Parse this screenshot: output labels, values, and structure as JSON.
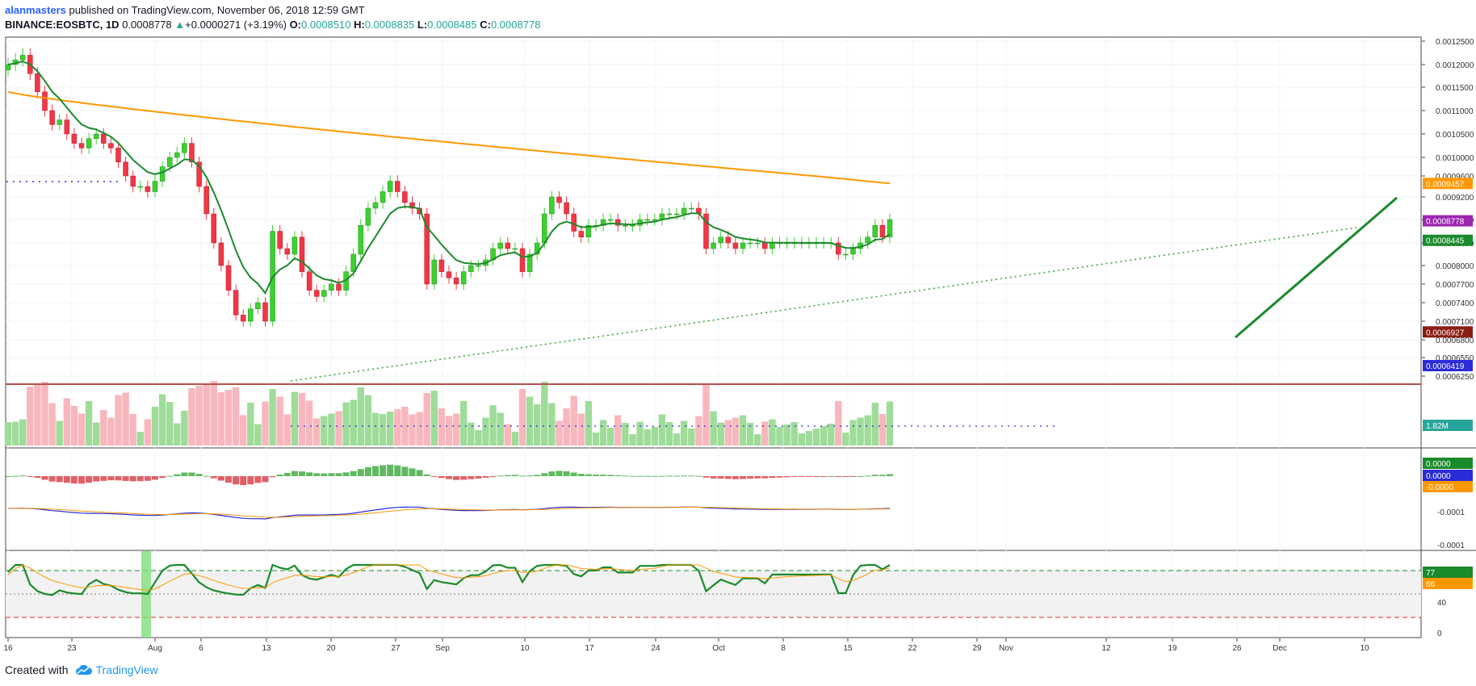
{
  "header": {
    "author": "alanmasters",
    "published_text": " published on TradingView.com, November 06, 2018 12:59 GMT",
    "symbol": "BINANCE:EOSBTC, 1D",
    "last": "0.0008778",
    "change_arrow": "▲",
    "change": "+0.0000271 (+3.19%)",
    "o_label": "O:",
    "o": "0.0008510",
    "h_label": "H:",
    "h": "0.0008835",
    "l_label": "L:",
    "l": "0.0008485",
    "c_label": "C:",
    "c": "0.0008778"
  },
  "footer": {
    "created_with": "Created with",
    "brand": "TradingView"
  },
  "colors": {
    "up": "#26a69a",
    "candle_up": "#3bd12e",
    "candle_down": "#f23645",
    "ema": "#1b8a2b",
    "ma200": "#ff9800",
    "support": "#b5524a",
    "vol_up": "#9fdc9a",
    "vol_down": "#f7b7bd",
    "macd_line": "#2b2bd9",
    "signal": "#ff9800"
  },
  "chart_data": [
    {
      "type": "candlestick",
      "symbol": "BINANCE:EOSBTC",
      "interval": "1D",
      "x_ticks": [
        "16",
        "23",
        "Aug",
        "6",
        "13",
        "20",
        "27",
        "Sep",
        "10",
        "17",
        "24",
        "Oct",
        "8",
        "15",
        "22",
        "29",
        "Nov",
        "12",
        "19",
        "26",
        "Dec",
        "10"
      ],
      "y_ticks": [
        "0.0012500",
        "0.0012000",
        "0.0011500",
        "0.0011000",
        "0.0010500",
        "0.0010000",
        "0.0009600",
        "0.0009200",
        "0.0008800",
        "0.0008400",
        "0.0008000",
        "0.0007700",
        "0.0007400",
        "0.0007100",
        "0.0006800",
        "0.0006550",
        "0.0006250"
      ],
      "close": [
        0.0012,
        0.00121,
        0.00122,
        0.00118,
        0.00114,
        0.0011,
        0.00107,
        0.00108,
        0.00105,
        0.00103,
        0.00102,
        0.00104,
        0.00105,
        0.00103,
        0.00102,
        0.00099,
        0.00096,
        0.00094,
        0.00094,
        0.00093,
        0.00095,
        0.00098,
        0.001,
        0.00101,
        0.00103,
        0.00099,
        0.00094,
        0.00089,
        0.00084,
        0.0008,
        0.00076,
        0.00072,
        0.00071,
        0.00073,
        0.00074,
        0.00071,
        0.00086,
        0.00083,
        0.00082,
        0.00085,
        0.00079,
        0.00076,
        0.00075,
        0.00076,
        0.00077,
        0.00076,
        0.00079,
        0.00082,
        0.00087,
        0.0009,
        0.00091,
        0.00093,
        0.00095,
        0.00093,
        0.00091,
        0.0009,
        0.00089,
        0.00077,
        0.00081,
        0.00079,
        0.00078,
        0.00077,
        0.00079,
        0.0008,
        0.0008,
        0.00081,
        0.00083,
        0.00084,
        0.00083,
        0.00083,
        0.00079,
        0.00082,
        0.00084,
        0.00089,
        0.00092,
        0.00091,
        0.00089,
        0.00086,
        0.00085,
        0.00087,
        0.00087,
        0.00088,
        0.00088,
        0.00087,
        0.00087,
        0.00087,
        0.00088,
        0.00088,
        0.00088,
        0.00089,
        0.00089,
        0.00089,
        0.0009,
        0.0009,
        0.00089,
        0.00083,
        0.00084,
        0.00085,
        0.00084,
        0.00083,
        0.00084,
        0.00084,
        0.00084,
        0.00083,
        0.00084,
        0.00084,
        0.00084,
        0.00084,
        0.00084,
        0.00084,
        0.00084,
        0.00084,
        0.00084,
        0.00082,
        0.00082,
        0.00083,
        0.00084,
        0.00085,
        0.00087,
        0.00085,
        0.00088
      ],
      "ema_last": 0.0008445,
      "ma200_last": 0.0009457,
      "price_labels": [
        {
          "value": 0.0009457,
          "text": "0.0009457",
          "color": "#ff9800"
        },
        {
          "value": 0.0008778,
          "text": "0.0008778",
          "color": "#9c27b0"
        },
        {
          "value": 0.0008445,
          "text": "0.0008445",
          "color": "#1b8a2b"
        },
        {
          "value": 0.0006927,
          "text": "0.0006927",
          "color": "#8b1c12"
        },
        {
          "value": 0.0006419,
          "text": "0.0006419",
          "color": "#2b2bd9"
        }
      ],
      "volume_label": "1.82M",
      "volume_label_color": "#26a69a"
    },
    {
      "type": "bar",
      "name": "",
      "y_ticks": [
        "-0.0001",
        "-0.0001"
      ],
      "labels": [
        {
          "text": "0.0000",
          "color": "#1b8a2b"
        },
        {
          "text": "0.0000",
          "color": "#2b2bd9"
        },
        {
          "text": "-0.0000",
          "color": "#ff9800"
        }
      ]
    },
    {
      "type": "line",
      "name": "",
      "y_ticks": [
        "40",
        "0"
      ],
      "upper": 70,
      "lower": 30,
      "labels": [
        {
          "text": "77",
          "color": "#1b8a2b"
        },
        {
          "text": "66",
          "color": "#ff9800"
        }
      ]
    }
  ]
}
